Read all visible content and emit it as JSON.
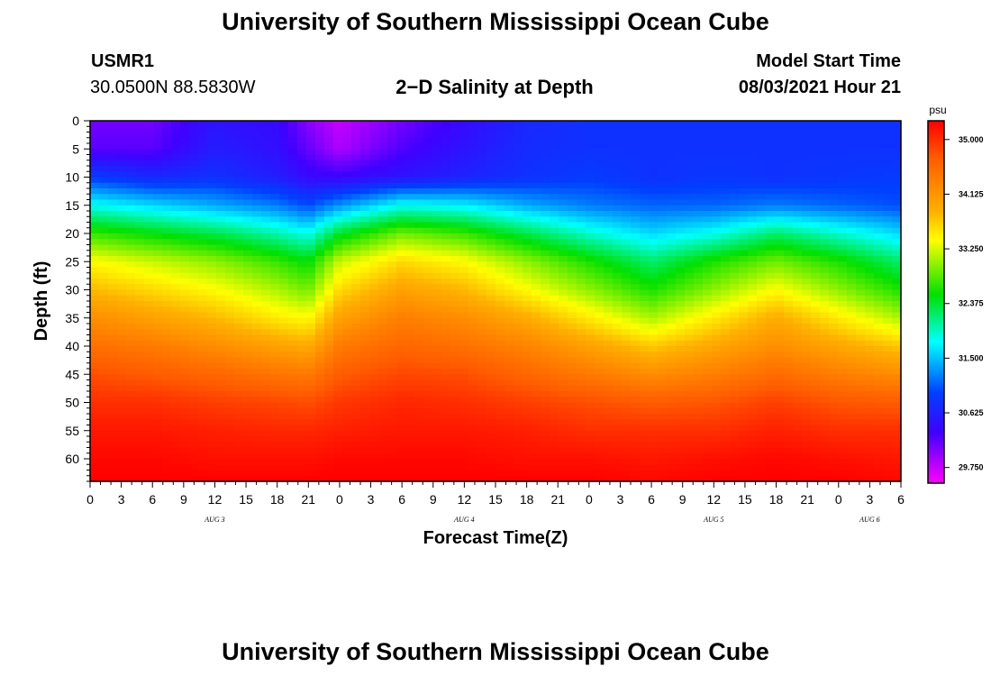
{
  "page": {
    "title_top": "University of Southern Mississippi Ocean Cube",
    "title_bottom": "University of Southern Mississippi Ocean Cube"
  },
  "header": {
    "station_id": "USMR1",
    "coords": "30.0500N  88.5830W",
    "subtitle": "2−D Salinity at Depth",
    "model_start_label": "Model Start Time",
    "model_start_value": "08/03/2021 Hour 21"
  },
  "chart_data": {
    "type": "heatmap",
    "title": "2−D Salinity at Depth",
    "xlabel": "Forecast Time(Z)",
    "ylabel": "Depth (ft)",
    "x_range_hours": [
      0,
      78
    ],
    "ylim": [
      0,
      64
    ],
    "y_ticks": [
      0,
      5,
      10,
      15,
      20,
      25,
      30,
      35,
      40,
      45,
      50,
      55,
      60
    ],
    "x_tick_labels": [
      "0",
      "3",
      "6",
      "9",
      "12",
      "15",
      "18",
      "21",
      "0",
      "3",
      "6",
      "9",
      "12",
      "15",
      "18",
      "21",
      "0",
      "3",
      "6",
      "9",
      "12",
      "15",
      "18",
      "21",
      "0",
      "3",
      "6"
    ],
    "date_labels": [
      {
        "label": "AUG 3",
        "hour": 12
      },
      {
        "label": "AUG 4",
        "hour": 36
      },
      {
        "label": "AUG 5",
        "hour": 60
      },
      {
        "label": "AUG 6",
        "hour": 75
      }
    ],
    "colorbar": {
      "unit": "psu",
      "min": 29.5,
      "max": 35.3,
      "ticks": [
        "35.000",
        "34.125",
        "33.250",
        "32.375",
        "31.500",
        "30.625",
        "29.750"
      ]
    },
    "depth_levels_ft": [
      0,
      5,
      10,
      15,
      20,
      25,
      30,
      35,
      40,
      45,
      50,
      55,
      60,
      64
    ],
    "time_hours": [
      0,
      6,
      12,
      18,
      21,
      24,
      30,
      36,
      42,
      48,
      54,
      60,
      66,
      72,
      78
    ],
    "salinity": [
      [
        30.1,
        30.1,
        30.5,
        30.4,
        30.0,
        29.75,
        30.1,
        30.4,
        30.7,
        30.8,
        30.8,
        30.8,
        30.8,
        30.8,
        30.8
      ],
      [
        30.2,
        30.2,
        30.6,
        30.45,
        30.15,
        29.85,
        30.25,
        30.5,
        30.75,
        30.8,
        30.8,
        30.8,
        30.8,
        30.8,
        30.8
      ],
      [
        30.9,
        30.7,
        30.8,
        30.6,
        30.4,
        30.35,
        30.5,
        30.65,
        30.8,
        30.9,
        30.8,
        30.85,
        30.8,
        30.85,
        30.9
      ],
      [
        31.8,
        31.6,
        31.4,
        31.2,
        31.0,
        31.3,
        31.8,
        31.7,
        31.4,
        31.2,
        31.1,
        31.1,
        31.2,
        31.1,
        31.0
      ],
      [
        32.7,
        32.5,
        32.3,
        32.0,
        31.8,
        32.4,
        32.9,
        32.7,
        32.3,
        31.9,
        31.6,
        31.8,
        32.2,
        31.9,
        31.6
      ],
      [
        33.4,
        33.2,
        33.0,
        32.7,
        32.5,
        33.2,
        33.6,
        33.4,
        33.0,
        32.6,
        32.2,
        32.6,
        32.9,
        32.6,
        32.2
      ],
      [
        33.8,
        33.6,
        33.4,
        33.1,
        32.9,
        33.6,
        34.0,
        33.8,
        33.4,
        33.0,
        32.6,
        33.0,
        33.4,
        33.0,
        32.6
      ],
      [
        34.2,
        34.0,
        33.8,
        33.5,
        33.4,
        34.0,
        34.35,
        34.2,
        33.9,
        33.5,
        33.1,
        33.5,
        33.9,
        33.5,
        33.1
      ],
      [
        34.5,
        34.4,
        34.2,
        34.0,
        33.9,
        34.4,
        34.6,
        34.5,
        34.3,
        34.0,
        33.7,
        33.95,
        34.2,
        33.95,
        33.7
      ],
      [
        34.8,
        34.7,
        34.6,
        34.45,
        34.4,
        34.7,
        34.85,
        34.8,
        34.6,
        34.4,
        34.2,
        34.35,
        34.55,
        34.35,
        34.2
      ],
      [
        35.0,
        35.0,
        34.9,
        34.85,
        34.8,
        34.95,
        35.05,
        35.0,
        34.9,
        34.8,
        34.7,
        34.75,
        34.9,
        34.75,
        34.7
      ],
      [
        35.15,
        35.15,
        35.1,
        35.05,
        35.05,
        35.1,
        35.15,
        35.15,
        35.1,
        35.0,
        35.0,
        35.0,
        35.1,
        35.0,
        35.0
      ],
      [
        35.25,
        35.25,
        35.2,
        35.2,
        35.2,
        35.25,
        35.25,
        35.25,
        35.2,
        35.2,
        35.15,
        35.2,
        35.25,
        35.2,
        35.15
      ],
      [
        35.3,
        35.3,
        35.3,
        35.3,
        35.3,
        35.3,
        35.3,
        35.3,
        35.3,
        35.3,
        35.25,
        35.3,
        35.3,
        35.3,
        35.25
      ]
    ]
  }
}
